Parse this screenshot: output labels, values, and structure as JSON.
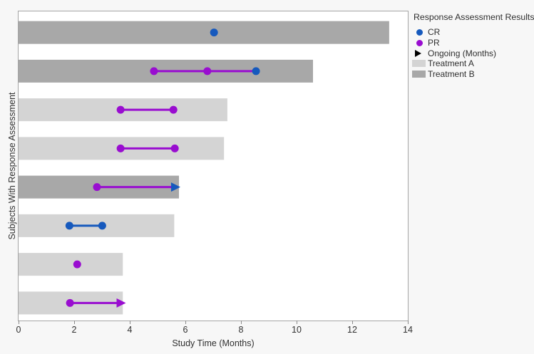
{
  "figure": {
    "background": "#f7f7f7",
    "plot_background": "#ffffff",
    "plot_border_color": "#a5a5a5"
  },
  "colors": {
    "cr": "#1659bd",
    "pr": "#990dd0",
    "treatment_a": "#d4d4d4",
    "treatment_b": "#a8a8a8",
    "tick": "#8c8c8c",
    "text": "#323232"
  },
  "axes": {
    "x_label": "Study Time (Months)",
    "y_label": "Subjects With Response Assessment"
  },
  "legend": {
    "title": "Response Assessment Results",
    "items": [
      {
        "label": "CR",
        "marker": "circle",
        "color": "#1659bd"
      },
      {
        "label": "PR",
        "marker": "circle",
        "color": "#990dd0"
      },
      {
        "label": "Ongoing (Months)",
        "marker": "arrow",
        "color": "#000000"
      },
      {
        "label": "Treatment A",
        "marker": "swatch",
        "color": "#d4d4d4"
      },
      {
        "label": "Treatment B",
        "marker": "swatch",
        "color": "#a8a8a8"
      }
    ]
  },
  "chart_data": {
    "type": "bar",
    "subtype": "swimmer-plot",
    "orientation": "horizontal",
    "title": "",
    "xlabel": "Study Time (Months)",
    "ylabel": "Subjects With Response Assessment",
    "xlim": [
      0,
      14
    ],
    "x_ticks": [
      0,
      2,
      4,
      6,
      8,
      10,
      12,
      14
    ],
    "grid": false,
    "legend_position": "right",
    "n_rows": 8,
    "subjects": [
      {
        "treatment": "Treatment B",
        "bar_length": 13.33,
        "dots": [
          {
            "type": "CR",
            "x": 7.03
          }
        ]
      },
      {
        "treatment": "Treatment B",
        "bar_length": 10.59,
        "line": {
          "from": 4.87,
          "to": 8.54,
          "color_key": "pr"
        },
        "dots": [
          {
            "type": "PR",
            "x": 4.87
          },
          {
            "type": "PR",
            "x": 6.79
          },
          {
            "type": "CR",
            "x": 8.54
          }
        ]
      },
      {
        "treatment": "Treatment A",
        "bar_length": 7.51,
        "line": {
          "from": 3.67,
          "to": 5.57,
          "color_key": "pr"
        },
        "dots": [
          {
            "type": "PR",
            "x": 3.67
          },
          {
            "type": "PR",
            "x": 5.57
          }
        ]
      },
      {
        "treatment": "Treatment A",
        "bar_length": 7.39,
        "line": {
          "from": 3.67,
          "to": 5.62,
          "color_key": "pr"
        },
        "dots": [
          {
            "type": "PR",
            "x": 3.67
          },
          {
            "type": "PR",
            "x": 5.62
          }
        ]
      },
      {
        "treatment": "Treatment B",
        "bar_length": 5.77,
        "line": {
          "from": 2.82,
          "to": 5.62,
          "color_key": "pr"
        },
        "arrow": {
          "x": 5.82,
          "color_key": "cr"
        },
        "dots": [
          {
            "type": "PR",
            "x": 2.82
          }
        ]
      },
      {
        "treatment": "Treatment A",
        "bar_length": 5.6,
        "line": {
          "from": 1.83,
          "to": 3.01,
          "color_key": "cr"
        },
        "dots": [
          {
            "type": "CR",
            "x": 1.83
          },
          {
            "type": "CR",
            "x": 3.01
          }
        ]
      },
      {
        "treatment": "Treatment A",
        "bar_length": 3.75,
        "dots": [
          {
            "type": "PR",
            "x": 2.11
          }
        ]
      },
      {
        "treatment": "Treatment A",
        "bar_length": 3.75,
        "line": {
          "from": 1.85,
          "to": 3.66,
          "color_key": "pr"
        },
        "arrow": {
          "x": 3.86,
          "color_key": "pr"
        },
        "dots": [
          {
            "type": "PR",
            "x": 1.85
          }
        ]
      }
    ]
  }
}
